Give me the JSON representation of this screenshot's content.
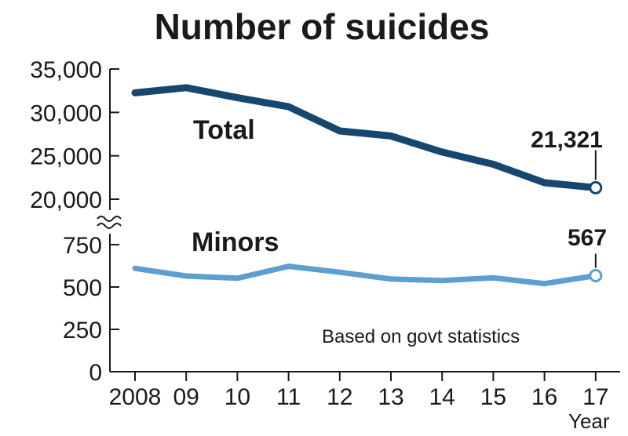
{
  "chart_data": {
    "type": "line",
    "title": "Number of suicides",
    "x": [
      "2008",
      "09",
      "10",
      "11",
      "12",
      "13",
      "14",
      "15",
      "16",
      "17"
    ],
    "xlabel": "Year",
    "note": "Based on govt statistics",
    "upper_axis": {
      "ticks": [
        "35,000",
        "30,000",
        "25,000",
        "20,000"
      ],
      "tick_values": [
        35000,
        30000,
        25000,
        20000
      ],
      "ylim": [
        20000,
        35000
      ]
    },
    "lower_axis": {
      "ticks": [
        "750",
        "500",
        "250",
        "0"
      ],
      "tick_values": [
        750,
        500,
        250,
        0
      ],
      "ylim": [
        0,
        750
      ]
    },
    "series": [
      {
        "name": "Total",
        "color": "#17476f",
        "values": [
          32249,
          32845,
          31690,
          30651,
          27858,
          27283,
          25427,
          24025,
          21897,
          21321
        ],
        "end_label": "21,321"
      },
      {
        "name": "Minors",
        "color": "#5d9fd1",
        "values": [
          610,
          565,
          552,
          622,
          587,
          547,
          538,
          554,
          520,
          567
        ],
        "end_label": "567"
      }
    ]
  }
}
